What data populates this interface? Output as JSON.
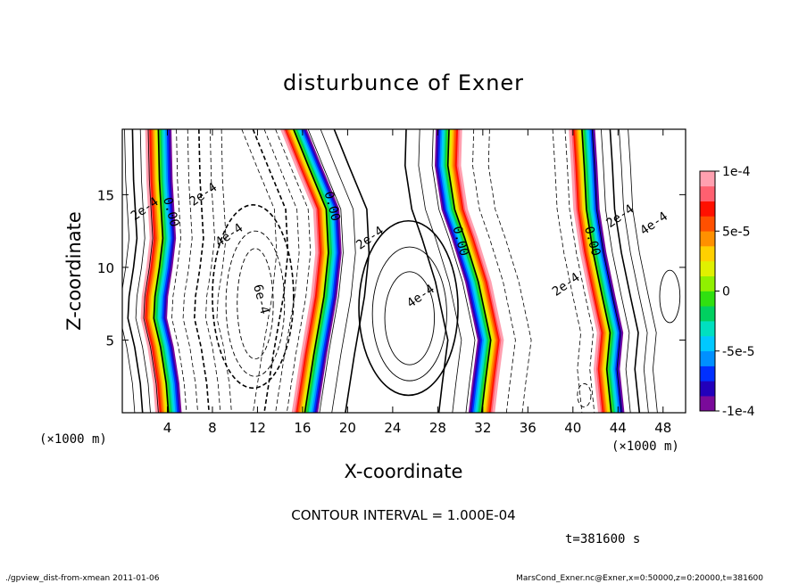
{
  "chart_data": {
    "type": "heatmap",
    "title": "disturbunce of Exner",
    "xlabel": "X-coordinate",
    "ylabel": "Z-coordinate",
    "x_unit": "(×1000 m)",
    "x_unit_right": "(×1000 m)",
    "y_unit": "(×1000 m)",
    "xlim": [
      0,
      50
    ],
    "ylim": [
      0,
      19.5
    ],
    "x_ticks": [
      "4",
      "8",
      "12",
      "16",
      "20",
      "24",
      "28",
      "32",
      "36",
      "40",
      "44",
      "48"
    ],
    "y_ticks": [
      "5",
      "10",
      "15"
    ],
    "colorbar": {
      "min": -0.0001,
      "max": 0.0001,
      "tick_labels": [
        "1e-4",
        "5e-5",
        "0",
        "-5e-5",
        "-1e-4"
      ],
      "tick_values": [
        0.0001,
        5e-05,
        0,
        -5e-05,
        -0.0001
      ],
      "colors": [
        "#7a0a9a",
        "#2200bb",
        "#0030ff",
        "#0090ff",
        "#00c8ff",
        "#00e0c0",
        "#00d060",
        "#30e010",
        "#90f000",
        "#e0f000",
        "#ffd000",
        "#ff9000",
        "#ff5000",
        "#ff1000",
        "#ff6070",
        "#ffa0b0"
      ]
    },
    "contour_interval_text": "CONTOUR INTERVAL = 1.000E-04",
    "contour_labels": [
      {
        "text": "2e-4",
        "x": 2.0,
        "z": 14.0
      },
      {
        "text": "0.00",
        "x": 4.3,
        "z": 13.8
      },
      {
        "text": "2e-4",
        "x": 7.2,
        "z": 15.0
      },
      {
        "text": "4e-4",
        "x": 9.5,
        "z": 12.2
      },
      {
        "text": "6e-4",
        "x": 12.3,
        "z": 7.8
      },
      {
        "text": "0.00",
        "x": 18.6,
        "z": 14.2
      },
      {
        "text": "2e-4",
        "x": 22.0,
        "z": 12.0
      },
      {
        "text": "4e-4",
        "x": 26.5,
        "z": 8.0
      },
      {
        "text": "0.00",
        "x": 30.0,
        "z": 11.8
      },
      {
        "text": "2e-4",
        "x": 39.4,
        "z": 8.8
      },
      {
        "text": "0.00",
        "x": 41.7,
        "z": 11.8
      },
      {
        "text": "2e-4",
        "x": 44.2,
        "z": 13.5
      },
      {
        "text": "4e-4",
        "x": 47.2,
        "z": 13.0
      }
    ],
    "zero_lines": [
      [
        [
          3.2,
          19.5
        ],
        [
          3.3,
          16
        ],
        [
          3.6,
          12
        ],
        [
          3.3,
          10
        ],
        [
          2.9,
          8
        ],
        [
          2.8,
          6.5
        ],
        [
          3.4,
          4.5
        ],
        [
          3.9,
          2
        ],
        [
          4.1,
          0
        ]
      ],
      [
        [
          15.2,
          19.5
        ],
        [
          16.5,
          17
        ],
        [
          18.1,
          14
        ],
        [
          18.3,
          11
        ],
        [
          17.9,
          8
        ],
        [
          17.0,
          4
        ],
        [
          16.2,
          0
        ]
      ],
      [
        [
          29.0,
          19.5
        ],
        [
          28.9,
          17
        ],
        [
          29.5,
          14
        ],
        [
          30.4,
          12
        ],
        [
          31.6,
          9
        ],
        [
          32.7,
          5
        ],
        [
          32.2,
          2
        ],
        [
          31.9,
          0
        ]
      ],
      [
        [
          40.8,
          19.5
        ],
        [
          41.0,
          17
        ],
        [
          41.2,
          14
        ],
        [
          41.8,
          11
        ],
        [
          42.6,
          8
        ],
        [
          43.3,
          5.5
        ],
        [
          43.0,
          3
        ],
        [
          43.4,
          0
        ]
      ]
    ],
    "time_text": "t=381600 s",
    "footer_left": "./gpview_dist-from-xmean  2011-01-06",
    "footer_right": "MarsCond_Exner.nc@Exner,x=0:50000,z=0:20000,t=381600"
  }
}
